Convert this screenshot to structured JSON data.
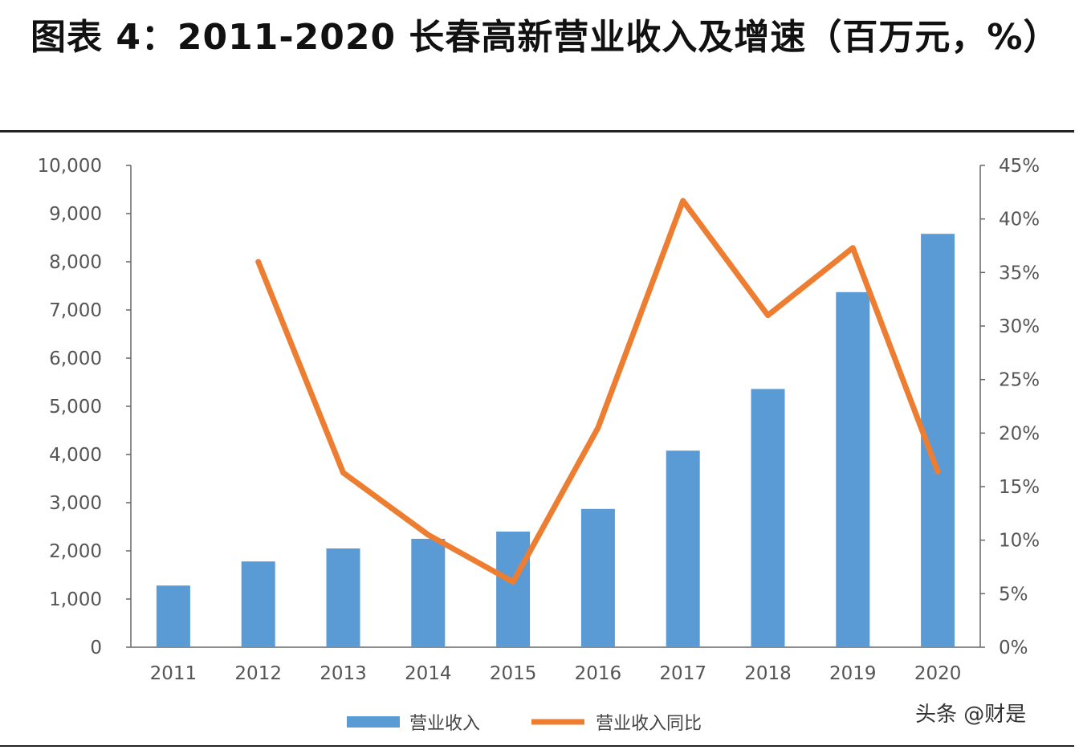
{
  "title": "图表 4：2011-2020 长春高新营业收入及增速（百万元，%）",
  "watermark": "头条 @财是",
  "chart_data": {
    "type": "bar",
    "categories": [
      "2011",
      "2012",
      "2013",
      "2014",
      "2015",
      "2016",
      "2017",
      "2018",
      "2019",
      "2020"
    ],
    "series": [
      {
        "name": "营业收入",
        "type": "bar",
        "axis": "left",
        "color": "#5b9bd5",
        "values": [
          1280,
          1780,
          2050,
          2250,
          2400,
          2870,
          4080,
          5360,
          7370,
          8580
        ]
      },
      {
        "name": "营业收入同比",
        "type": "line",
        "axis": "right",
        "color": "#ed7d31",
        "values": [
          null,
          36.0,
          16.3,
          10.5,
          6.1,
          20.5,
          41.7,
          31.0,
          37.3,
          16.4
        ]
      }
    ],
    "y_left": {
      "min": 0,
      "max": 10000,
      "ticks": [
        "0",
        "1,000",
        "2,000",
        "3,000",
        "4,000",
        "5,000",
        "6,000",
        "7,000",
        "8,000",
        "9,000",
        "10,000"
      ]
    },
    "y_right": {
      "min": 0,
      "max": 45,
      "ticks": [
        "0%",
        "5%",
        "10%",
        "15%",
        "20%",
        "25%",
        "30%",
        "35%",
        "40%",
        "45%"
      ]
    },
    "legend_position": "bottom-center",
    "grid": false
  }
}
